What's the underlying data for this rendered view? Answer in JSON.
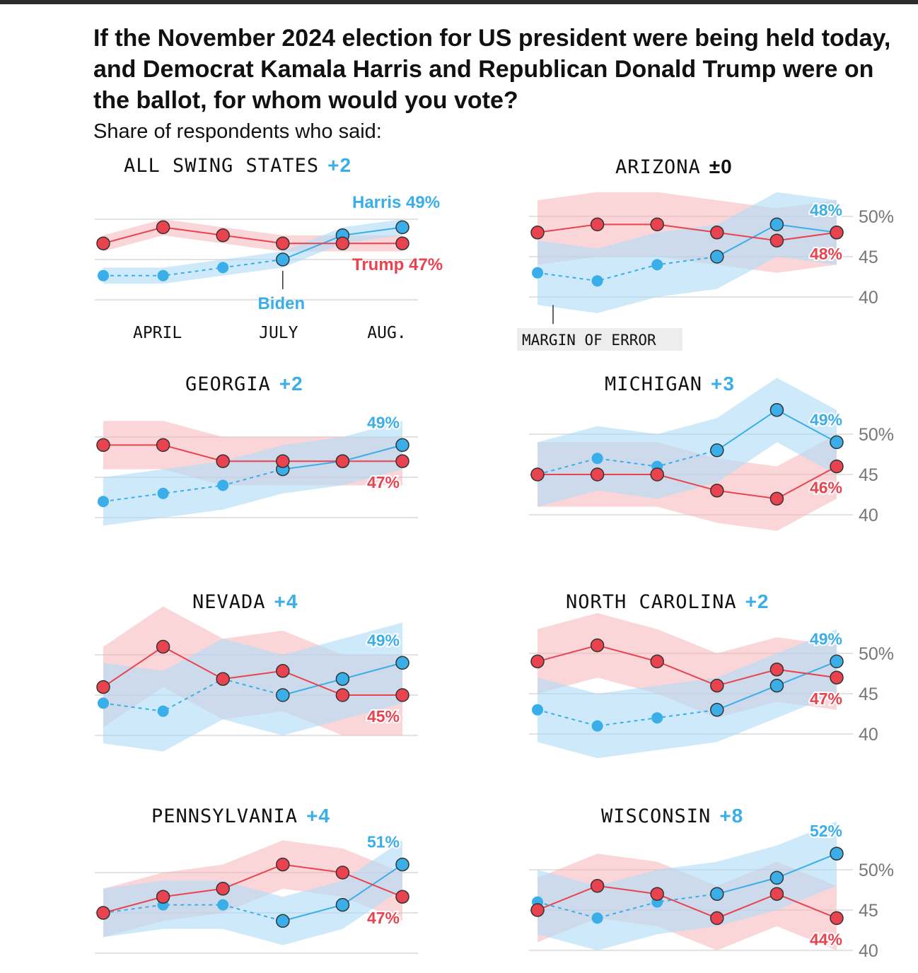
{
  "title": "If the November 2024 election for US president were being held today, and Democrat Kamala Harris and Republican Donald Trump were on the ballot, for whom would you vote?",
  "subtitle": "Share of respondents who said:",
  "colors": {
    "harris": "#3aaee8",
    "trump": "#e8434f",
    "harris_band": "#aedcf7",
    "trump_band": "#f6b5ba",
    "grid": "#d9d9d9"
  },
  "annotations": {
    "harris_label": "Harris 49%",
    "trump_label": "Trump 47%",
    "biden_label": "Biden",
    "margin_of_error": "MARGIN OF ERROR"
  },
  "months": [
    "APRIL",
    "JULY",
    "AUG."
  ],
  "y_ticks": [
    "50%",
    "45",
    "40"
  ],
  "chart_data": [
    {
      "type": "line",
      "title": "ALL SWING STATES",
      "margin": "+2",
      "margin_color": "harris",
      "ylim": [
        38,
        54
      ],
      "series": [
        {
          "name": "Harris",
          "values": [
            43,
            43,
            44,
            45,
            48,
            49
          ],
          "biden_until": 3,
          "band": [
            [
              42,
              44
            ],
            [
              42,
              44
            ],
            [
              43,
              45
            ],
            [
              44,
              46
            ],
            [
              47,
              49
            ],
            [
              48,
              50
            ]
          ]
        },
        {
          "name": "Trump",
          "values": [
            47,
            49,
            48,
            47,
            47,
            47
          ],
          "band": [
            [
              46,
              48
            ],
            [
              48,
              50
            ],
            [
              47,
              49
            ],
            [
              46,
              48
            ],
            [
              46,
              48
            ],
            [
              46,
              48
            ]
          ]
        }
      ],
      "end_labels": {
        "harris": "",
        "trump": ""
      }
    },
    {
      "type": "line",
      "title": "ARIZONA",
      "margin": "±0",
      "margin_color": "black",
      "ylim": [
        38,
        54
      ],
      "series": [
        {
          "name": "Harris",
          "values": [
            43,
            42,
            44,
            45,
            49,
            48
          ],
          "biden_until": 3,
          "band": [
            [
              39,
              47
            ],
            [
              38,
              46
            ],
            [
              40,
              48
            ],
            [
              41,
              49
            ],
            [
              45,
              53
            ],
            [
              44,
              52
            ]
          ]
        },
        {
          "name": "Trump",
          "values": [
            48,
            49,
            49,
            48,
            47,
            48
          ],
          "band": [
            [
              44,
              52
            ],
            [
              45,
              53
            ],
            [
              45,
              53
            ],
            [
              44,
              52
            ],
            [
              43,
              51
            ],
            [
              44,
              52
            ]
          ]
        }
      ],
      "end_labels": {
        "harris": "48%",
        "trump": "48%"
      }
    },
    {
      "type": "line",
      "title": "GEORGIA",
      "margin": "+2",
      "margin_color": "harris",
      "ylim": [
        38,
        54
      ],
      "series": [
        {
          "name": "Harris",
          "values": [
            42,
            43,
            44,
            46,
            47,
            49
          ],
          "biden_until": 3,
          "band": [
            [
              39,
              45
            ],
            [
              40,
              46
            ],
            [
              41,
              47
            ],
            [
              43,
              49
            ],
            [
              44,
              50
            ],
            [
              46,
              52
            ]
          ]
        },
        {
          "name": "Trump",
          "values": [
            49,
            49,
            47,
            47,
            47,
            47
          ],
          "band": [
            [
              46,
              52
            ],
            [
              46,
              52
            ],
            [
              44,
              50
            ],
            [
              44,
              50
            ],
            [
              44,
              50
            ],
            [
              44,
              50
            ]
          ]
        }
      ],
      "end_labels": {
        "harris": "49%",
        "trump": "47%"
      }
    },
    {
      "type": "line",
      "title": "MICHIGAN",
      "margin": "+3",
      "margin_color": "harris",
      "ylim": [
        38,
        54
      ],
      "series": [
        {
          "name": "Harris",
          "values": [
            45,
            47,
            46,
            48,
            53,
            49
          ],
          "biden_until": 3,
          "band": [
            [
              41,
              49
            ],
            [
              43,
              51
            ],
            [
              42,
              50
            ],
            [
              44,
              52
            ],
            [
              49,
              57
            ],
            [
              45,
              53
            ]
          ]
        },
        {
          "name": "Trump",
          "values": [
            45,
            45,
            45,
            43,
            42,
            46
          ],
          "band": [
            [
              41,
              49
            ],
            [
              41,
              49
            ],
            [
              41,
              49
            ],
            [
              39,
              47
            ],
            [
              38,
              46
            ],
            [
              42,
              50
            ]
          ]
        }
      ],
      "end_labels": {
        "harris": "49%",
        "trump": "46%"
      }
    },
    {
      "type": "line",
      "title": "NEVADA",
      "margin": "+4",
      "margin_color": "harris",
      "ylim": [
        38,
        54
      ],
      "series": [
        {
          "name": "Harris",
          "values": [
            44,
            43,
            47,
            45,
            47,
            49
          ],
          "biden_until": 3,
          "band": [
            [
              39,
              49
            ],
            [
              38,
              48
            ],
            [
              42,
              52
            ],
            [
              40,
              50
            ],
            [
              42,
              52
            ],
            [
              44,
              54
            ]
          ]
        },
        {
          "name": "Trump",
          "values": [
            46,
            51,
            47,
            48,
            45,
            45
          ],
          "band": [
            [
              41,
              51
            ],
            [
              46,
              56
            ],
            [
              42,
              52
            ],
            [
              43,
              53
            ],
            [
              40,
              50
            ],
            [
              40,
              50
            ]
          ]
        }
      ],
      "end_labels": {
        "harris": "49%",
        "trump": "45%"
      }
    },
    {
      "type": "line",
      "title": "NORTH CAROLINA",
      "margin": "+2",
      "margin_color": "harris",
      "ylim": [
        38,
        54
      ],
      "series": [
        {
          "name": "Harris",
          "values": [
            43,
            41,
            42,
            43,
            46,
            49
          ],
          "biden_until": 3,
          "band": [
            [
              39,
              47
            ],
            [
              37,
              45
            ],
            [
              38,
              46
            ],
            [
              39,
              47
            ],
            [
              42,
              50
            ],
            [
              45,
              53
            ]
          ]
        },
        {
          "name": "Trump",
          "values": [
            49,
            51,
            49,
            46,
            48,
            47
          ],
          "band": [
            [
              45,
              53
            ],
            [
              47,
              55
            ],
            [
              45,
              53
            ],
            [
              42,
              50
            ],
            [
              44,
              52
            ],
            [
              43,
              51
            ]
          ]
        }
      ],
      "end_labels": {
        "harris": "49%",
        "trump": "47%"
      }
    },
    {
      "type": "line",
      "title": "PENNSYLVANIA",
      "margin": "+4",
      "margin_color": "harris",
      "ylim": [
        38,
        54
      ],
      "series": [
        {
          "name": "Harris",
          "values": [
            45,
            46,
            46,
            44,
            46,
            51
          ],
          "biden_until": 3,
          "band": [
            [
              42,
              48
            ],
            [
              43,
              49
            ],
            [
              43,
              49
            ],
            [
              41,
              47
            ],
            [
              43,
              49
            ],
            [
              48,
              54
            ]
          ]
        },
        {
          "name": "Trump",
          "values": [
            45,
            47,
            48,
            51,
            50,
            47
          ],
          "band": [
            [
              42,
              48
            ],
            [
              44,
              50
            ],
            [
              45,
              51
            ],
            [
              48,
              54
            ],
            [
              47,
              53
            ],
            [
              44,
              50
            ]
          ]
        }
      ],
      "end_labels": {
        "harris": "51%",
        "trump": "47%"
      }
    },
    {
      "type": "line",
      "title": "WISCONSIN",
      "margin": "+8",
      "margin_color": "harris",
      "ylim": [
        38,
        54
      ],
      "series": [
        {
          "name": "Harris",
          "values": [
            46,
            44,
            46,
            47,
            49,
            52
          ],
          "biden_until": 3,
          "band": [
            [
              42,
              50
            ],
            [
              40,
              48
            ],
            [
              42,
              50
            ],
            [
              43,
              51
            ],
            [
              45,
              53
            ],
            [
              48,
              56
            ]
          ]
        },
        {
          "name": "Trump",
          "values": [
            45,
            48,
            47,
            44,
            47,
            44
          ],
          "band": [
            [
              41,
              49
            ],
            [
              44,
              52
            ],
            [
              43,
              51
            ],
            [
              40,
              48
            ],
            [
              43,
              51
            ],
            [
              40,
              48
            ]
          ]
        }
      ],
      "end_labels": {
        "harris": "52%",
        "trump": "44%"
      }
    }
  ]
}
